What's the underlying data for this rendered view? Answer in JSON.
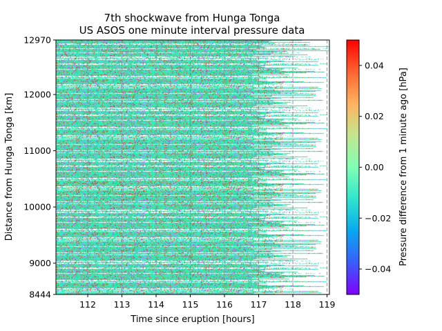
{
  "chart_data": {
    "type": "heatmap",
    "title": "7th shockwave from Hunga Tonga",
    "subtitle": "US ASOS one minute interval pressure data",
    "xlabel": "Time since eruption [hours]",
    "ylabel": "Distance from Hunga Tonga [km]",
    "xlim": [
      111.07,
      119.07
    ],
    "ylim": [
      8444,
      12970
    ],
    "x_ticks": [
      "112",
      "113",
      "114",
      "115",
      "116",
      "117",
      "118",
      "119"
    ],
    "y_ticks": [
      "8444",
      "9000",
      "10000",
      "11000",
      "12000",
      "12970"
    ],
    "y_tick_values": [
      8444,
      9000,
      10000,
      11000,
      12000,
      12970
    ],
    "x_tick_values": [
      112,
      113,
      114,
      115,
      116,
      117,
      118,
      119
    ],
    "colorbar": {
      "label": "Pressure difference from 1 minute ago [hPa]",
      "range": [
        -0.05,
        0.05
      ],
      "ticks": [
        "0.04",
        "0.02",
        "0.00",
        "−0.02",
        "−0.04"
      ],
      "tick_values": [
        0.04,
        0.02,
        0.0,
        -0.02,
        -0.04
      ],
      "colormap": "rainbow"
    },
    "dashed_vertical_lines_at_hours": [
      112,
      113,
      114,
      115,
      116,
      117,
      118,
      119
    ],
    "grid": false
  }
}
